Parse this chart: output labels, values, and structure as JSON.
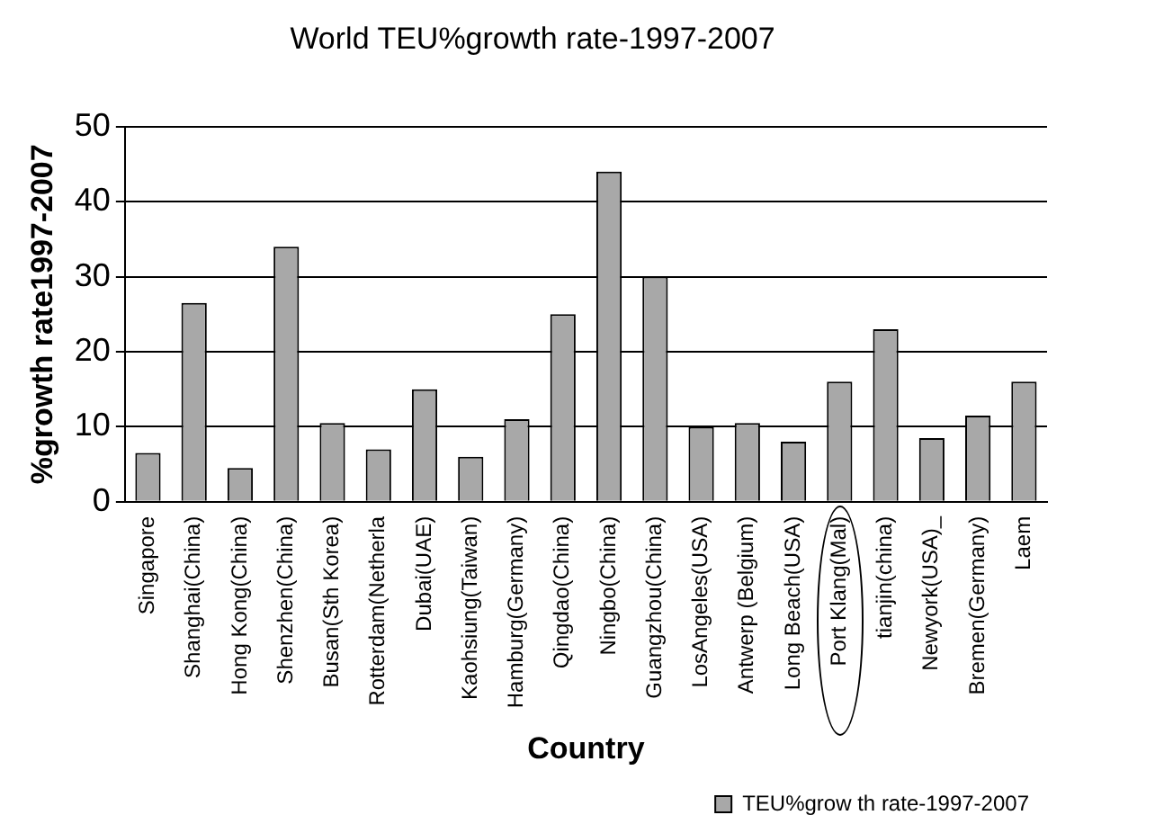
{
  "chart_data": {
    "type": "bar",
    "title": "World TEU%growth rate-1997-2007",
    "xlabel": "Country",
    "ylabel": "%growth rate1997-2007",
    "categories": [
      "Singapore",
      "Shanghai(China)",
      "Hong Kong(China)",
      "Shenzhen(China)",
      "Busan(Sth Korea)",
      "Rotterdam(Netherla",
      "Dubai(UAE)",
      "Kaohsiung(Taiwan)",
      "Hamburg(Germany)",
      "Qingdao(China)",
      "Ningbo(China)",
      "Guangzhou(China)",
      "LosAngeles(USA)",
      "Antwerp (Belgium)",
      "Long Beach(USA)",
      "Port Klang(Mal)",
      "tianjin(china)",
      "Newyork(USA)_",
      "Bremen(Germany)",
      "Laem"
    ],
    "series": [
      {
        "name": "TEU%grow th rate-1997-2007",
        "color": "#a8a8a8",
        "values": [
          6.5,
          26.5,
          4.5,
          34,
          10.5,
          7,
          15,
          6,
          11,
          25,
          44,
          30,
          10,
          10.5,
          8,
          16,
          23,
          8.5,
          11.5,
          16
        ]
      }
    ],
    "ylim": [
      0,
      50
    ],
    "yticks": [
      0,
      10,
      20,
      30,
      40,
      50
    ],
    "grid": "y",
    "legend": "bottom right"
  }
}
